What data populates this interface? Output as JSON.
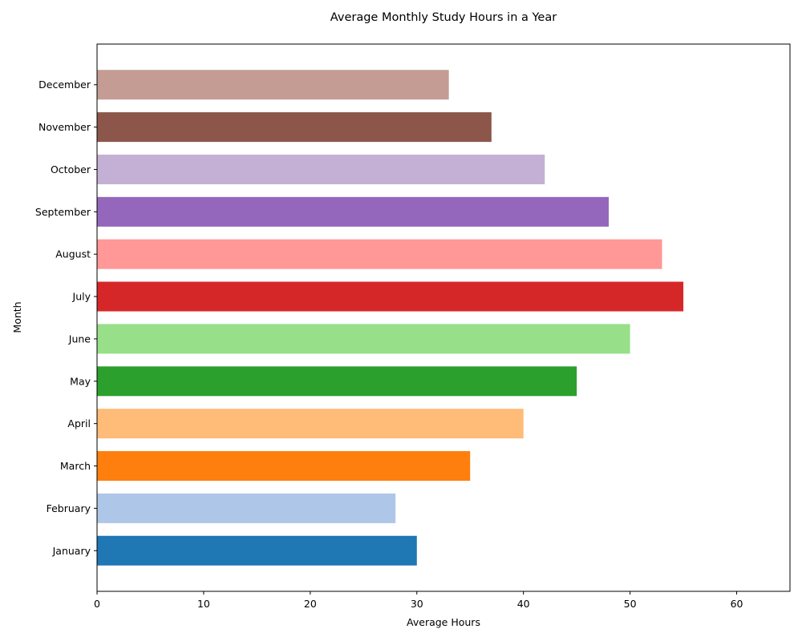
{
  "chart_data": {
    "type": "bar",
    "orientation": "horizontal",
    "title": "Average Monthly Study Hours in a Year",
    "xlabel": "Average Hours",
    "ylabel": "Month",
    "xlim": [
      0,
      65
    ],
    "xticks": [
      0,
      10,
      20,
      30,
      40,
      50,
      60
    ],
    "grid": false,
    "categories": [
      "January",
      "February",
      "March",
      "April",
      "May",
      "June",
      "July",
      "August",
      "September",
      "October",
      "November",
      "December"
    ],
    "values": [
      30,
      28,
      35,
      40,
      45,
      50,
      55,
      53,
      48,
      42,
      37,
      33
    ],
    "colors": [
      "#1f77b4",
      "#aec7e8",
      "#ff7f0e",
      "#ffbb78",
      "#2ca02c",
      "#98df8a",
      "#d62728",
      "#ff9896",
      "#9467bd",
      "#c5b0d5",
      "#8c564b",
      "#c49c94"
    ]
  }
}
